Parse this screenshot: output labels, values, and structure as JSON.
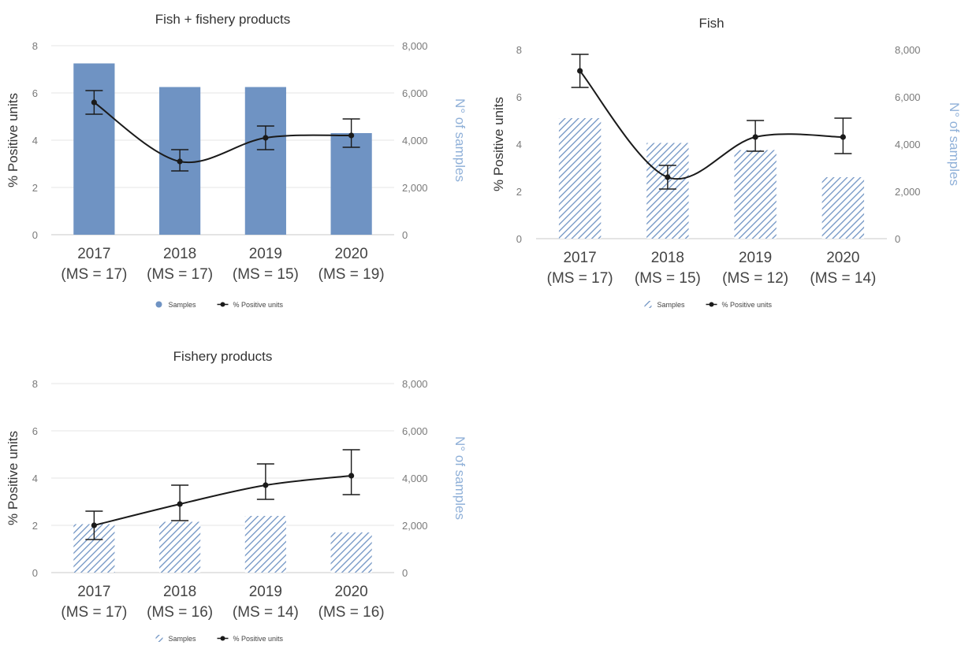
{
  "chart_data": [
    {
      "type": "bar",
      "title": "Fish + fishery products",
      "ylabel": "% Positive units",
      "y2label": "N° of samples",
      "ylim": [
        0,
        8
      ],
      "y2lim": [
        0,
        8000
      ],
      "y_ticks": [
        "0",
        "2",
        "4",
        "6",
        "8"
      ],
      "y2_ticks": [
        "0",
        "2,000",
        "4,000",
        "6,000",
        "8,000"
      ],
      "categories": [
        "2017",
        "2018",
        "2019",
        "2020"
      ],
      "category_sublabels": [
        "(MS = 17)",
        "(MS = 17)",
        "(MS = 15)",
        "(MS = 19)"
      ],
      "series": [
        {
          "name": "Samples",
          "type": "bar",
          "axis": "right",
          "pattern": "solid",
          "color": "#6f93c3",
          "values": [
            7250,
            6250,
            6250,
            4300
          ]
        },
        {
          "name": "% Positive units",
          "type": "line",
          "axis": "left",
          "color": "#1a1a1a",
          "values": [
            5.6,
            3.1,
            4.1,
            4.2
          ],
          "err_low": [
            5.1,
            2.7,
            3.6,
            3.7
          ],
          "err_high": [
            6.1,
            3.6,
            4.6,
            4.9
          ]
        }
      ],
      "legend": [
        "Samples",
        "% Positive units"
      ],
      "legend_position": "bottom",
      "grid": true
    },
    {
      "type": "bar",
      "title": "Fish",
      "ylabel": "% Positive units",
      "y2label": "N° of samples",
      "ylim": [
        0,
        8
      ],
      "y2lim": [
        0,
        8000
      ],
      "y_ticks": [
        "0",
        "2",
        "4",
        "6",
        "8"
      ],
      "y2_ticks": [
        "0",
        "2,000",
        "4,000",
        "6,000",
        "8,000"
      ],
      "categories": [
        "2017",
        "2018",
        "2019",
        "2020"
      ],
      "category_sublabels": [
        "(MS = 17)",
        "(MS = 15)",
        "(MS = 12)",
        "(MS = 14)"
      ],
      "series": [
        {
          "name": "Samples",
          "type": "bar",
          "axis": "right",
          "pattern": "hatched",
          "color": "#6f93c3",
          "values": [
            5100,
            4050,
            3750,
            2600
          ]
        },
        {
          "name": "% Positive units",
          "type": "line",
          "axis": "left",
          "color": "#1a1a1a",
          "values": [
            7.1,
            2.6,
            4.3,
            4.3
          ],
          "err_low": [
            6.4,
            2.1,
            3.7,
            3.6
          ],
          "err_high": [
            7.8,
            3.1,
            5.0,
            5.1
          ]
        }
      ],
      "legend": [
        "Samples",
        "% Positive units"
      ],
      "legend_position": "bottom",
      "grid": false
    },
    {
      "type": "bar",
      "title": "Fishery products",
      "ylabel": "% Positive units",
      "y2label": "N° of samples",
      "ylim": [
        0,
        8
      ],
      "y2lim": [
        0,
        8000
      ],
      "y_ticks": [
        "0",
        "2",
        "4",
        "6",
        "8"
      ],
      "y2_ticks": [
        "0",
        "2,000",
        "4,000",
        "6,000",
        "8,000"
      ],
      "categories": [
        "2017",
        "2018",
        "2019",
        "2020"
      ],
      "category_sublabels": [
        "(MS = 17)",
        "(MS = 16)",
        "(MS = 14)",
        "(MS = 16)"
      ],
      "series": [
        {
          "name": "Samples",
          "type": "bar",
          "axis": "right",
          "pattern": "hatched",
          "color": "#6f93c3",
          "values": [
            2050,
            2150,
            2400,
            1700
          ]
        },
        {
          "name": "% Positive units",
          "type": "line",
          "axis": "left",
          "color": "#1a1a1a",
          "values": [
            2.0,
            2.9,
            3.7,
            4.1
          ],
          "err_low": [
            1.4,
            2.2,
            3.1,
            3.3
          ],
          "err_high": [
            2.6,
            3.7,
            4.6,
            5.2
          ]
        }
      ],
      "legend": [
        "Samples",
        "% Positive units"
      ],
      "legend_position": "bottom",
      "grid": true
    }
  ]
}
